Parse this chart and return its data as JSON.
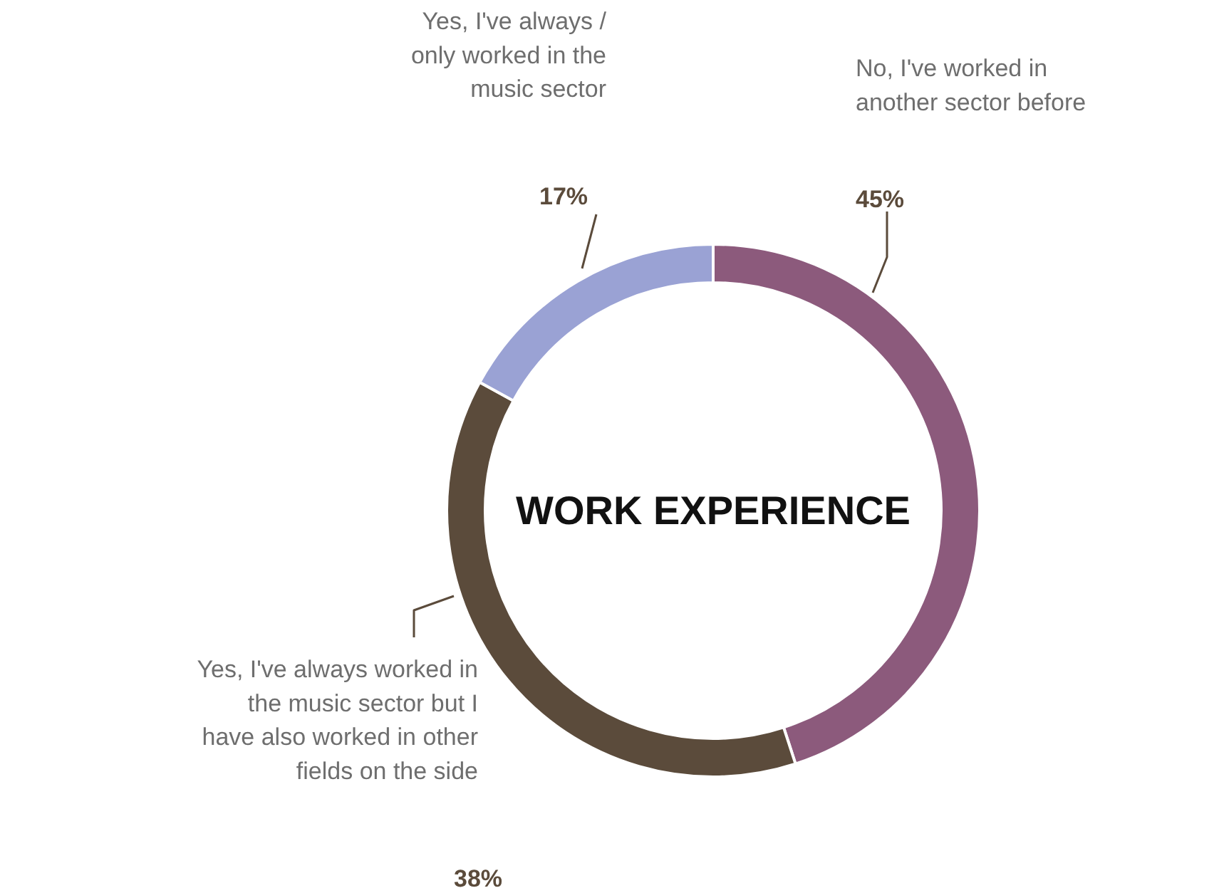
{
  "chart_data": {
    "type": "donut",
    "title": "WORK EXPERIENCE",
    "categories": [
      "No, I've worked in\nanother sector before",
      "Yes, I've always worked in\nthe music sector but I\nhave also worked in other\nfields on the side",
      "Yes, I've always /\nonly worked in the\nmusic sector"
    ],
    "values": [
      45,
      38,
      17
    ],
    "colors": [
      "#8c5a7c",
      "#5b4b3b",
      "#9aa2d4"
    ],
    "value_labels": [
      "45%",
      "38%",
      "17%"
    ]
  }
}
